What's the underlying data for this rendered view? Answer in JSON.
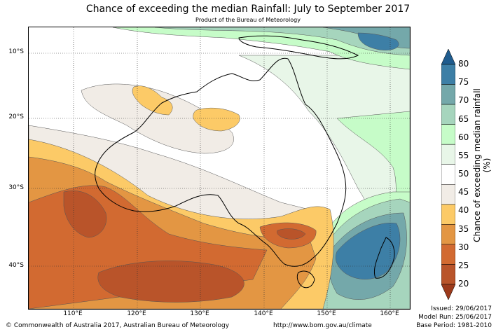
{
  "header": {
    "title": "Chance of exceeding the median Rainfall: July to September 2017",
    "subtitle": "Product of the Bureau of Meteorology"
  },
  "axes": {
    "lat_labels": [
      "10°S",
      "20°S",
      "30°S",
      "40°S"
    ],
    "lon_labels": [
      "110°E",
      "120°E",
      "130°E",
      "140°E",
      "150°E",
      "160°E"
    ]
  },
  "legend": {
    "title": "Chance of exceeding median rainfall (%)",
    "ticks": [
      "80",
      "75",
      "70",
      "65",
      "60",
      "55",
      "50",
      "45",
      "40",
      "35",
      "30",
      "25",
      "20"
    ],
    "colors": [
      "#1f5c8e",
      "#3d7fa6",
      "#74a8aa",
      "#a6d5bd",
      "#c6fcc8",
      "#e8f6e8",
      "#ffffff",
      "#f1ece6",
      "#fcca67",
      "#e39643",
      "#d26a31",
      "#b9542a",
      "#9c3a1b"
    ]
  },
  "footer": {
    "copyright": "© Commonwealth of Australia 2017, Australian Bureau of Meteorology",
    "url": "http://www.bom.gov.au/climate",
    "issued": "Issued: 29/06/2017",
    "model_run": "Model Run: 25/06/2017",
    "base_period": "Base Period: 1981-2010"
  }
}
